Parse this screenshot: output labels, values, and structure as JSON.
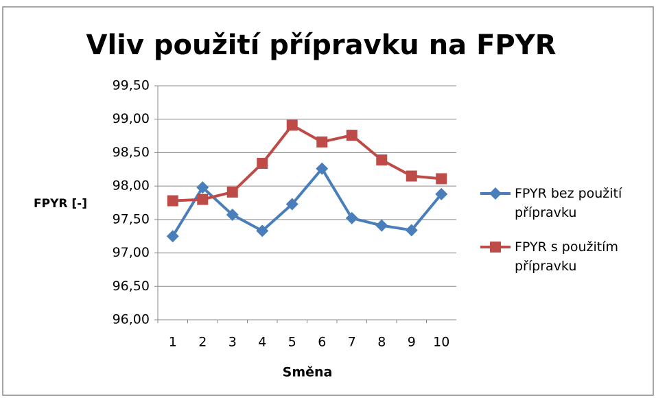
{
  "chart_data": {
    "type": "line",
    "title": "Vliv použití přípravku na FPYR",
    "x_label": "Směna",
    "y_label": "FPYR [-]",
    "categories": [
      "1",
      "2",
      "3",
      "4",
      "5",
      "6",
      "7",
      "8",
      "9",
      "10"
    ],
    "series": [
      {
        "name": "FPYR bez použití přípravku",
        "color": "#4a7ebb",
        "marker": "diamond",
        "values": [
          97.25,
          97.98,
          97.57,
          97.33,
          97.73,
          98.26,
          97.52,
          97.41,
          97.34,
          97.88
        ]
      },
      {
        "name": "FPYR s použitím přípravku",
        "color": "#be4b48",
        "marker": "square",
        "values": [
          97.78,
          97.8,
          97.91,
          98.34,
          98.91,
          98.66,
          98.76,
          98.39,
          98.15,
          98.11
        ]
      }
    ],
    "ylim": [
      96,
      99.5
    ],
    "yticks": [
      {
        "value": 96,
        "label": "96,00"
      },
      {
        "value": 96.5,
        "label": "96,50"
      },
      {
        "value": 97,
        "label": "97,00"
      },
      {
        "value": 97.5,
        "label": "97,50"
      },
      {
        "value": 98,
        "label": "98,00"
      },
      {
        "value": 98.5,
        "label": "98,50"
      },
      {
        "value": 99,
        "label": "99,00"
      },
      {
        "value": 99.5,
        "label": "99,50"
      }
    ],
    "grid": true,
    "legend": "right"
  }
}
